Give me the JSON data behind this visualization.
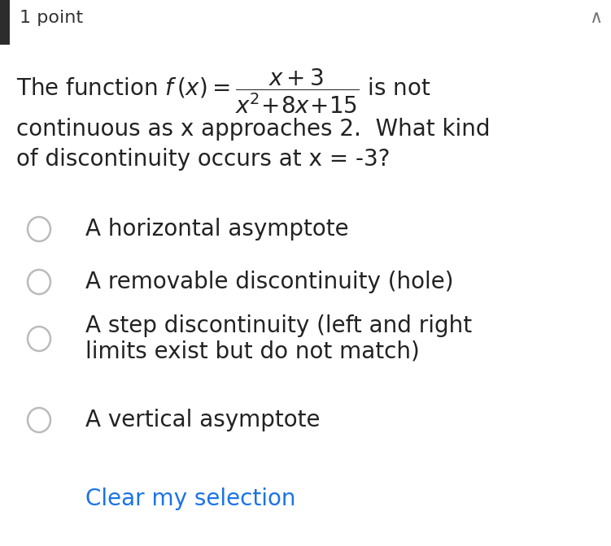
{
  "background_color": "#ffffff",
  "header_text": "1 point",
  "header_color": "#333333",
  "header_fontsize": 16,
  "question_fontsize": 20,
  "options": [
    "A horizontal asymptote",
    "A removable discontinuity (hole)",
    "A step discontinuity (left and right\nlimits exist but do not match)",
    "A vertical asymptote"
  ],
  "option_fontsize": 20,
  "clear_text": "Clear my selection",
  "clear_color": "#1a73e8",
  "clear_fontsize": 20,
  "radio_edge_color": "#bbbbbb",
  "radio_linewidth": 1.8,
  "left_bar_color": "#2c2c2c",
  "text_color": "#222222"
}
